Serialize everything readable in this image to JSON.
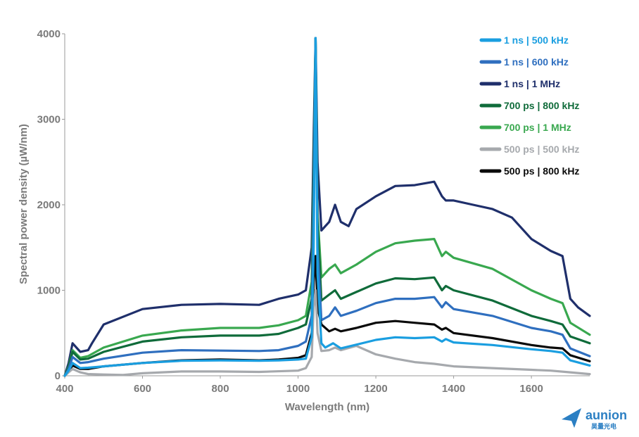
{
  "chart_data": {
    "type": "line",
    "xlabel": "Wavelength (nm)",
    "ylabel": "Spectral power density (µW/nm)",
    "xlim": [
      400,
      1750
    ],
    "ylim": [
      0,
      4000
    ],
    "x_ticks": [
      400,
      600,
      800,
      1000,
      1200,
      1400,
      1600
    ],
    "y_ticks": [
      0,
      1000,
      2000,
      3000,
      4000
    ],
    "grid": false,
    "legend_position": "top-right",
    "series": [
      {
        "name": "1 ns | 500 kHz",
        "color": "#1a9ee0",
        "points": [
          [
            400,
            0
          ],
          [
            410,
            60
          ],
          [
            420,
            150
          ],
          [
            440,
            90
          ],
          [
            460,
            95
          ],
          [
            500,
            110
          ],
          [
            600,
            150
          ],
          [
            700,
            175
          ],
          [
            800,
            180
          ],
          [
            900,
            175
          ],
          [
            950,
            180
          ],
          [
            1000,
            190
          ],
          [
            1020,
            200
          ],
          [
            1035,
            450
          ],
          [
            1040,
            1500
          ],
          [
            1045,
            3950
          ],
          [
            1050,
            1200
          ],
          [
            1060,
            380
          ],
          [
            1070,
            330
          ],
          [
            1090,
            380
          ],
          [
            1110,
            320
          ],
          [
            1200,
            420
          ],
          [
            1250,
            450
          ],
          [
            1300,
            440
          ],
          [
            1350,
            450
          ],
          [
            1370,
            400
          ],
          [
            1380,
            430
          ],
          [
            1400,
            390
          ],
          [
            1500,
            360
          ],
          [
            1600,
            310
          ],
          [
            1650,
            290
          ],
          [
            1680,
            270
          ],
          [
            1700,
            180
          ],
          [
            1750,
            120
          ]
        ]
      },
      {
        "name": "1 ns | 600 kHz",
        "color": "#2f6fbf",
        "points": [
          [
            400,
            0
          ],
          [
            410,
            80
          ],
          [
            420,
            220
          ],
          [
            440,
            150
          ],
          [
            460,
            160
          ],
          [
            500,
            200
          ],
          [
            600,
            270
          ],
          [
            700,
            300
          ],
          [
            800,
            295
          ],
          [
            900,
            290
          ],
          [
            950,
            300
          ],
          [
            1000,
            350
          ],
          [
            1020,
            400
          ],
          [
            1035,
            700
          ],
          [
            1040,
            2000
          ],
          [
            1045,
            3950
          ],
          [
            1050,
            1500
          ],
          [
            1060,
            650
          ],
          [
            1080,
            700
          ],
          [
            1095,
            800
          ],
          [
            1110,
            700
          ],
          [
            1150,
            760
          ],
          [
            1200,
            850
          ],
          [
            1250,
            900
          ],
          [
            1300,
            900
          ],
          [
            1350,
            920
          ],
          [
            1370,
            800
          ],
          [
            1380,
            860
          ],
          [
            1400,
            780
          ],
          [
            1500,
            700
          ],
          [
            1600,
            560
          ],
          [
            1650,
            520
          ],
          [
            1680,
            480
          ],
          [
            1700,
            320
          ],
          [
            1750,
            230
          ]
        ]
      },
      {
        "name": "1 ns | 1 MHz",
        "color": "#1f2f6b",
        "points": [
          [
            400,
            0
          ],
          [
            410,
            150
          ],
          [
            420,
            380
          ],
          [
            440,
            280
          ],
          [
            460,
            300
          ],
          [
            470,
            380
          ],
          [
            500,
            600
          ],
          [
            600,
            780
          ],
          [
            700,
            830
          ],
          [
            800,
            840
          ],
          [
            900,
            830
          ],
          [
            950,
            900
          ],
          [
            1000,
            950
          ],
          [
            1020,
            1000
          ],
          [
            1035,
            1500
          ],
          [
            1040,
            2800
          ],
          [
            1045,
            3950
          ],
          [
            1050,
            2500
          ],
          [
            1060,
            1700
          ],
          [
            1080,
            1800
          ],
          [
            1095,
            2000
          ],
          [
            1110,
            1800
          ],
          [
            1130,
            1750
          ],
          [
            1150,
            1950
          ],
          [
            1200,
            2100
          ],
          [
            1250,
            2220
          ],
          [
            1300,
            2230
          ],
          [
            1350,
            2270
          ],
          [
            1370,
            2100
          ],
          [
            1380,
            2050
          ],
          [
            1400,
            2050
          ],
          [
            1450,
            2000
          ],
          [
            1500,
            1950
          ],
          [
            1550,
            1850
          ],
          [
            1600,
            1600
          ],
          [
            1650,
            1460
          ],
          [
            1680,
            1400
          ],
          [
            1700,
            900
          ],
          [
            1720,
            800
          ],
          [
            1750,
            700
          ]
        ]
      },
      {
        "name": "700 ps | 800 kHz",
        "color": "#0f6b3a",
        "points": [
          [
            400,
            0
          ],
          [
            410,
            100
          ],
          [
            420,
            280
          ],
          [
            440,
            190
          ],
          [
            460,
            200
          ],
          [
            500,
            280
          ],
          [
            600,
            400
          ],
          [
            700,
            450
          ],
          [
            800,
            470
          ],
          [
            900,
            470
          ],
          [
            950,
            490
          ],
          [
            1000,
            560
          ],
          [
            1020,
            600
          ],
          [
            1035,
            900
          ],
          [
            1040,
            2200
          ],
          [
            1045,
            3950
          ],
          [
            1050,
            1800
          ],
          [
            1060,
            880
          ],
          [
            1080,
            950
          ],
          [
            1095,
            1000
          ],
          [
            1110,
            900
          ],
          [
            1150,
            980
          ],
          [
            1200,
            1080
          ],
          [
            1250,
            1140
          ],
          [
            1300,
            1130
          ],
          [
            1350,
            1150
          ],
          [
            1370,
            1000
          ],
          [
            1380,
            1050
          ],
          [
            1400,
            1000
          ],
          [
            1500,
            880
          ],
          [
            1600,
            700
          ],
          [
            1650,
            640
          ],
          [
            1680,
            600
          ],
          [
            1700,
            460
          ],
          [
            1750,
            380
          ]
        ]
      },
      {
        "name": "700 ps | 1 MHz",
        "color": "#39a84f",
        "points": [
          [
            400,
            0
          ],
          [
            410,
            110
          ],
          [
            420,
            300
          ],
          [
            440,
            210
          ],
          [
            460,
            230
          ],
          [
            500,
            330
          ],
          [
            600,
            470
          ],
          [
            700,
            530
          ],
          [
            800,
            560
          ],
          [
            900,
            560
          ],
          [
            950,
            590
          ],
          [
            1000,
            650
          ],
          [
            1020,
            700
          ],
          [
            1035,
            1100
          ],
          [
            1040,
            2400
          ],
          [
            1045,
            3950
          ],
          [
            1050,
            1900
          ],
          [
            1060,
            1150
          ],
          [
            1080,
            1250
          ],
          [
            1095,
            1300
          ],
          [
            1110,
            1200
          ],
          [
            1150,
            1300
          ],
          [
            1200,
            1450
          ],
          [
            1250,
            1550
          ],
          [
            1300,
            1580
          ],
          [
            1350,
            1600
          ],
          [
            1370,
            1400
          ],
          [
            1380,
            1450
          ],
          [
            1400,
            1380
          ],
          [
            1500,
            1250
          ],
          [
            1600,
            1000
          ],
          [
            1650,
            900
          ],
          [
            1680,
            850
          ],
          [
            1700,
            620
          ],
          [
            1750,
            480
          ]
        ]
      },
      {
        "name": "500 ps | 500 kHz",
        "color": "#a6a9ad",
        "points": [
          [
            400,
            0
          ],
          [
            410,
            40
          ],
          [
            420,
            80
          ],
          [
            440,
            40
          ],
          [
            460,
            20
          ],
          [
            500,
            15
          ],
          [
            550,
            10
          ],
          [
            600,
            30
          ],
          [
            700,
            50
          ],
          [
            800,
            50
          ],
          [
            900,
            45
          ],
          [
            1000,
            60
          ],
          [
            1020,
            90
          ],
          [
            1035,
            220
          ],
          [
            1040,
            800
          ],
          [
            1045,
            1000
          ],
          [
            1050,
            500
          ],
          [
            1060,
            290
          ],
          [
            1080,
            300
          ],
          [
            1095,
            330
          ],
          [
            1110,
            300
          ],
          [
            1150,
            350
          ],
          [
            1200,
            250
          ],
          [
            1250,
            200
          ],
          [
            1300,
            160
          ],
          [
            1350,
            140
          ],
          [
            1400,
            110
          ],
          [
            1500,
            90
          ],
          [
            1600,
            70
          ],
          [
            1650,
            60
          ],
          [
            1700,
            40
          ],
          [
            1750,
            20
          ]
        ]
      },
      {
        "name": "500 ps | 800 kHz",
        "color": "#0a0a0a",
        "points": [
          [
            400,
            0
          ],
          [
            410,
            50
          ],
          [
            420,
            120
          ],
          [
            440,
            80
          ],
          [
            460,
            80
          ],
          [
            500,
            110
          ],
          [
            600,
            150
          ],
          [
            700,
            180
          ],
          [
            800,
            190
          ],
          [
            900,
            180
          ],
          [
            950,
            190
          ],
          [
            1000,
            210
          ],
          [
            1020,
            240
          ],
          [
            1035,
            500
          ],
          [
            1040,
            1100
          ],
          [
            1045,
            1400
          ],
          [
            1050,
            800
          ],
          [
            1060,
            600
          ],
          [
            1080,
            520
          ],
          [
            1095,
            550
          ],
          [
            1110,
            520
          ],
          [
            1150,
            560
          ],
          [
            1200,
            620
          ],
          [
            1250,
            640
          ],
          [
            1300,
            620
          ],
          [
            1350,
            600
          ],
          [
            1370,
            540
          ],
          [
            1380,
            560
          ],
          [
            1400,
            500
          ],
          [
            1500,
            440
          ],
          [
            1600,
            360
          ],
          [
            1650,
            330
          ],
          [
            1680,
            320
          ],
          [
            1700,
            240
          ],
          [
            1750,
            170
          ]
        ]
      }
    ]
  },
  "logo": {
    "name": "aunion",
    "subtitle": "昊量光电",
    "color": "#2b7fc3"
  }
}
